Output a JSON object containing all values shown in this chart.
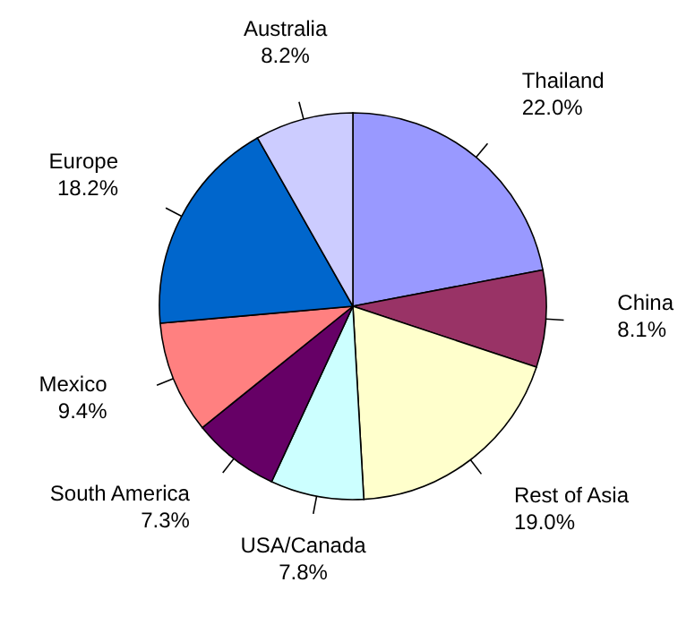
{
  "chart_data": {
    "type": "pie",
    "categories": [
      "Thailand",
      "China",
      "Rest of Asia",
      "USA/Canada",
      "South America",
      "Mexico",
      "Europe",
      "Australia"
    ],
    "values": [
      22.0,
      8.1,
      19.0,
      7.8,
      7.3,
      9.4,
      18.2,
      8.2
    ],
    "value_labels": [
      "22.0%",
      "8.1%",
      "19.0%",
      "7.8%",
      "7.3%",
      "9.4%",
      "18.2%",
      "8.2%"
    ],
    "colors": [
      "#9999ff",
      "#993366",
      "#ffffcc",
      "#ccffff",
      "#660066",
      "#ff8080",
      "#0066cc",
      "#ccccff"
    ]
  }
}
